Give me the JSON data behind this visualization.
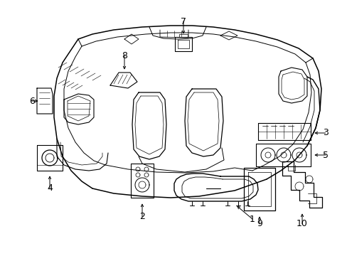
{
  "background_color": "#ffffff",
  "line_color": "#000000",
  "fig_width": 4.89,
  "fig_height": 3.6,
  "dpi": 100,
  "label_fontsize": 9,
  "arrow_lw": 0.6,
  "arrow_mutation_scale": 5
}
